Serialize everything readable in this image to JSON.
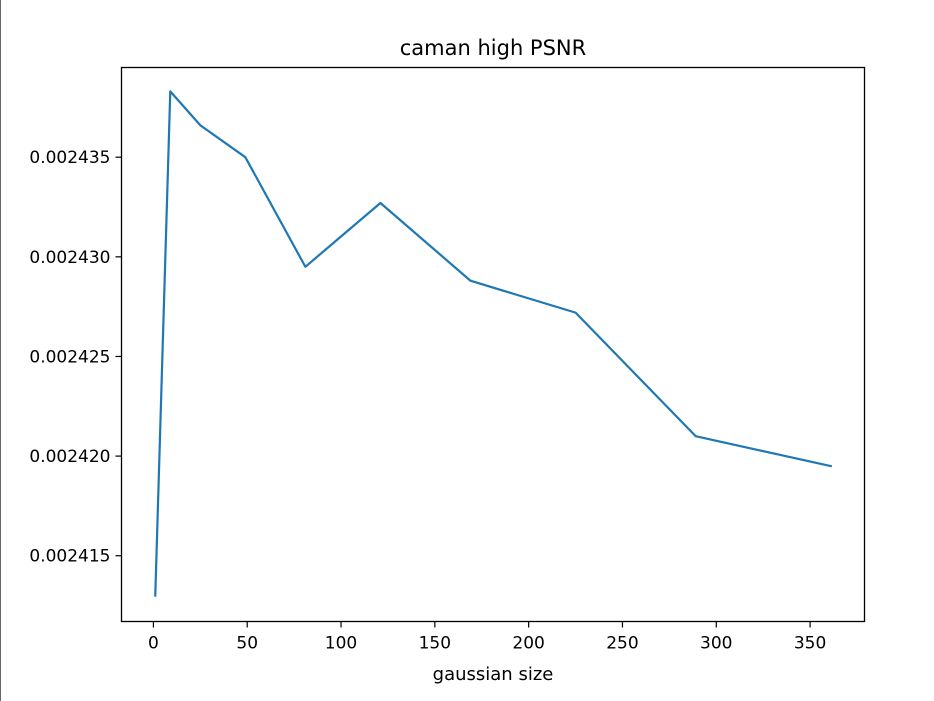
{
  "chart_data": {
    "type": "line",
    "title": "caman high PSNR",
    "xlabel": "gaussian size",
    "ylabel": "",
    "x": [
      1,
      9,
      25,
      49,
      81,
      121,
      169,
      225,
      289,
      361
    ],
    "series": [
      {
        "values": [
          0.002413,
          0.0024383,
          0.0024366,
          0.002435,
          0.0024295,
          0.0024327,
          0.0024288,
          0.0024272,
          0.002421,
          0.0024195
        ]
      }
    ],
    "xlim": [
      -17,
      379
    ],
    "ylim": [
      0.0024117,
      0.0024395
    ],
    "xticks": [
      0,
      50,
      100,
      150,
      200,
      250,
      300,
      350
    ],
    "xtick_labels": [
      "0",
      "50",
      "100",
      "150",
      "200",
      "250",
      "300",
      "350"
    ],
    "yticks": [
      0.002415,
      0.00242,
      0.002425,
      0.00243,
      0.002435
    ],
    "ytick_labels": [
      "0.002415",
      "0.002420",
      "0.002425",
      "0.002430",
      "0.002435"
    ],
    "grid": false,
    "line_color": "#1f77b4"
  }
}
